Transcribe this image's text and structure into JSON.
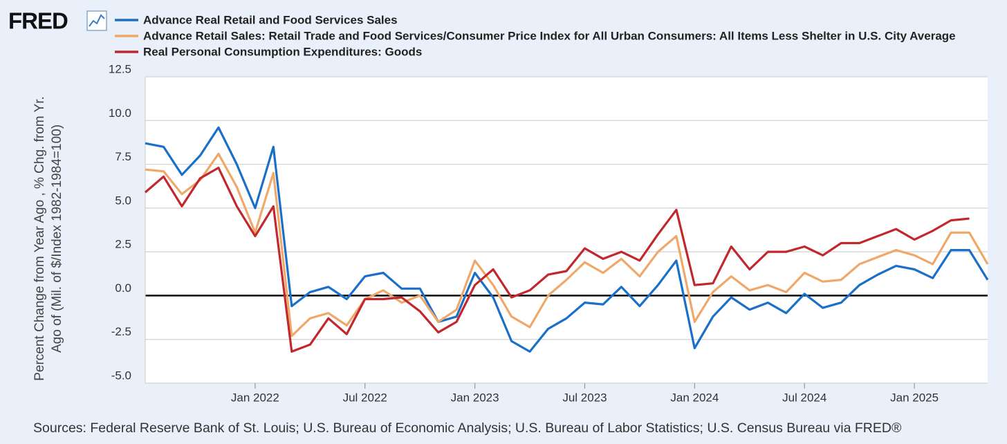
{
  "chart_data": {
    "type": "line",
    "brand": "FRED",
    "ylabel": "Percent Change from Year Ago , % Chg. from Yr. Ago of (Mil. of $/Index 1982-1984=100)",
    "source": "Sources: Federal Reserve Bank of St. Louis; U.S. Bureau of Economic Analysis; U.S. Bureau of Labor Statistics; U.S. Census Bureau via FRED®",
    "x": [
      "2021-07",
      "2021-08",
      "2021-09",
      "2021-10",
      "2021-11",
      "2021-12",
      "2022-01",
      "2022-02",
      "2022-03",
      "2022-04",
      "2022-05",
      "2022-06",
      "2022-07",
      "2022-08",
      "2022-09",
      "2022-10",
      "2022-11",
      "2022-12",
      "2023-01",
      "2023-02",
      "2023-03",
      "2023-04",
      "2023-05",
      "2023-06",
      "2023-07",
      "2023-08",
      "2023-09",
      "2023-10",
      "2023-11",
      "2023-12",
      "2024-01",
      "2024-02",
      "2024-03",
      "2024-04",
      "2024-05",
      "2024-06",
      "2024-07",
      "2024-08",
      "2024-09",
      "2024-10",
      "2024-11",
      "2024-12",
      "2025-01",
      "2025-02",
      "2025-03",
      "2025-04",
      "2025-05"
    ],
    "series": [
      {
        "name": "Advance Real Retail and Food Services Sales",
        "color": "#1a6fc8",
        "values": [
          8.7,
          8.5,
          6.9,
          8.0,
          9.6,
          7.5,
          5.0,
          8.5,
          -0.6,
          0.2,
          0.5,
          -0.2,
          1.1,
          1.3,
          0.4,
          0.4,
          -1.5,
          -1.2,
          1.3,
          -0.1,
          -2.6,
          -3.2,
          -1.9,
          -1.3,
          -0.4,
          -0.5,
          0.5,
          -0.6,
          0.6,
          2.0,
          -3.0,
          -1.2,
          -0.1,
          -0.8,
          -0.4,
          -1.0,
          0.1,
          -0.7,
          -0.4,
          0.6,
          1.2,
          1.7,
          1.5,
          1.0,
          2.6,
          2.6,
          0.9
        ]
      },
      {
        "name": "Advance Retail Sales: Retail Trade and Food Services/Consumer Price Index for All Urban Consumers: All Items Less Shelter in U.S. City Average",
        "color": "#efa86a",
        "values": [
          7.2,
          7.1,
          5.8,
          6.6,
          8.1,
          6.2,
          3.6,
          7.0,
          -2.3,
          -1.3,
          -1.0,
          -1.7,
          -0.2,
          0.3,
          -0.4,
          0.0,
          -1.5,
          -0.8,
          2.0,
          0.6,
          -1.2,
          -1.8,
          0.0,
          0.9,
          1.9,
          1.3,
          2.1,
          1.1,
          2.5,
          3.4,
          -1.5,
          0.2,
          1.1,
          0.3,
          0.6,
          0.2,
          1.3,
          0.8,
          0.9,
          1.8,
          2.2,
          2.6,
          2.3,
          1.8,
          3.6,
          3.6,
          1.8
        ]
      },
      {
        "name": "Real Personal Consumption Expenditures: Goods",
        "color": "#c1272d",
        "values": [
          5.9,
          6.8,
          5.1,
          6.7,
          7.3,
          5.1,
          3.4,
          5.1,
          -3.2,
          -2.8,
          -1.3,
          -2.2,
          -0.2,
          -0.2,
          -0.1,
          -0.9,
          -2.1,
          -1.5,
          0.6,
          1.5,
          -0.1,
          0.3,
          1.2,
          1.4,
          2.7,
          2.1,
          2.5,
          2.0,
          3.5,
          4.9,
          0.6,
          0.7,
          2.8,
          1.5,
          2.5,
          2.5,
          2.8,
          2.3,
          3.0,
          3.0,
          3.4,
          3.8,
          3.2,
          3.7,
          4.3,
          4.4,
          null
        ]
      }
    ],
    "xlim": [
      "2021-07",
      "2025-05"
    ],
    "xticks": [
      {
        "value": "2022-01",
        "label": "Jan 2022"
      },
      {
        "value": "2022-07",
        "label": "Jul 2022"
      },
      {
        "value": "2023-01",
        "label": "Jan 2023"
      },
      {
        "value": "2023-07",
        "label": "Jul 2023"
      },
      {
        "value": "2024-01",
        "label": "Jan 2024"
      },
      {
        "value": "2024-07",
        "label": "Jul 2024"
      },
      {
        "value": "2025-01",
        "label": "Jan 2025"
      }
    ],
    "ylim": [
      -5,
      12.5
    ],
    "yticks": [
      12.5,
      {
        "value": 10,
        "label": "10.0"
      },
      7.5,
      {
        "value": 5,
        "label": "5.0"
      },
      2.5,
      {
        "value": 0,
        "label": "0.0"
      },
      -2.5,
      {
        "value": -5,
        "label": "-5.0"
      }
    ],
    "grid": true
  }
}
